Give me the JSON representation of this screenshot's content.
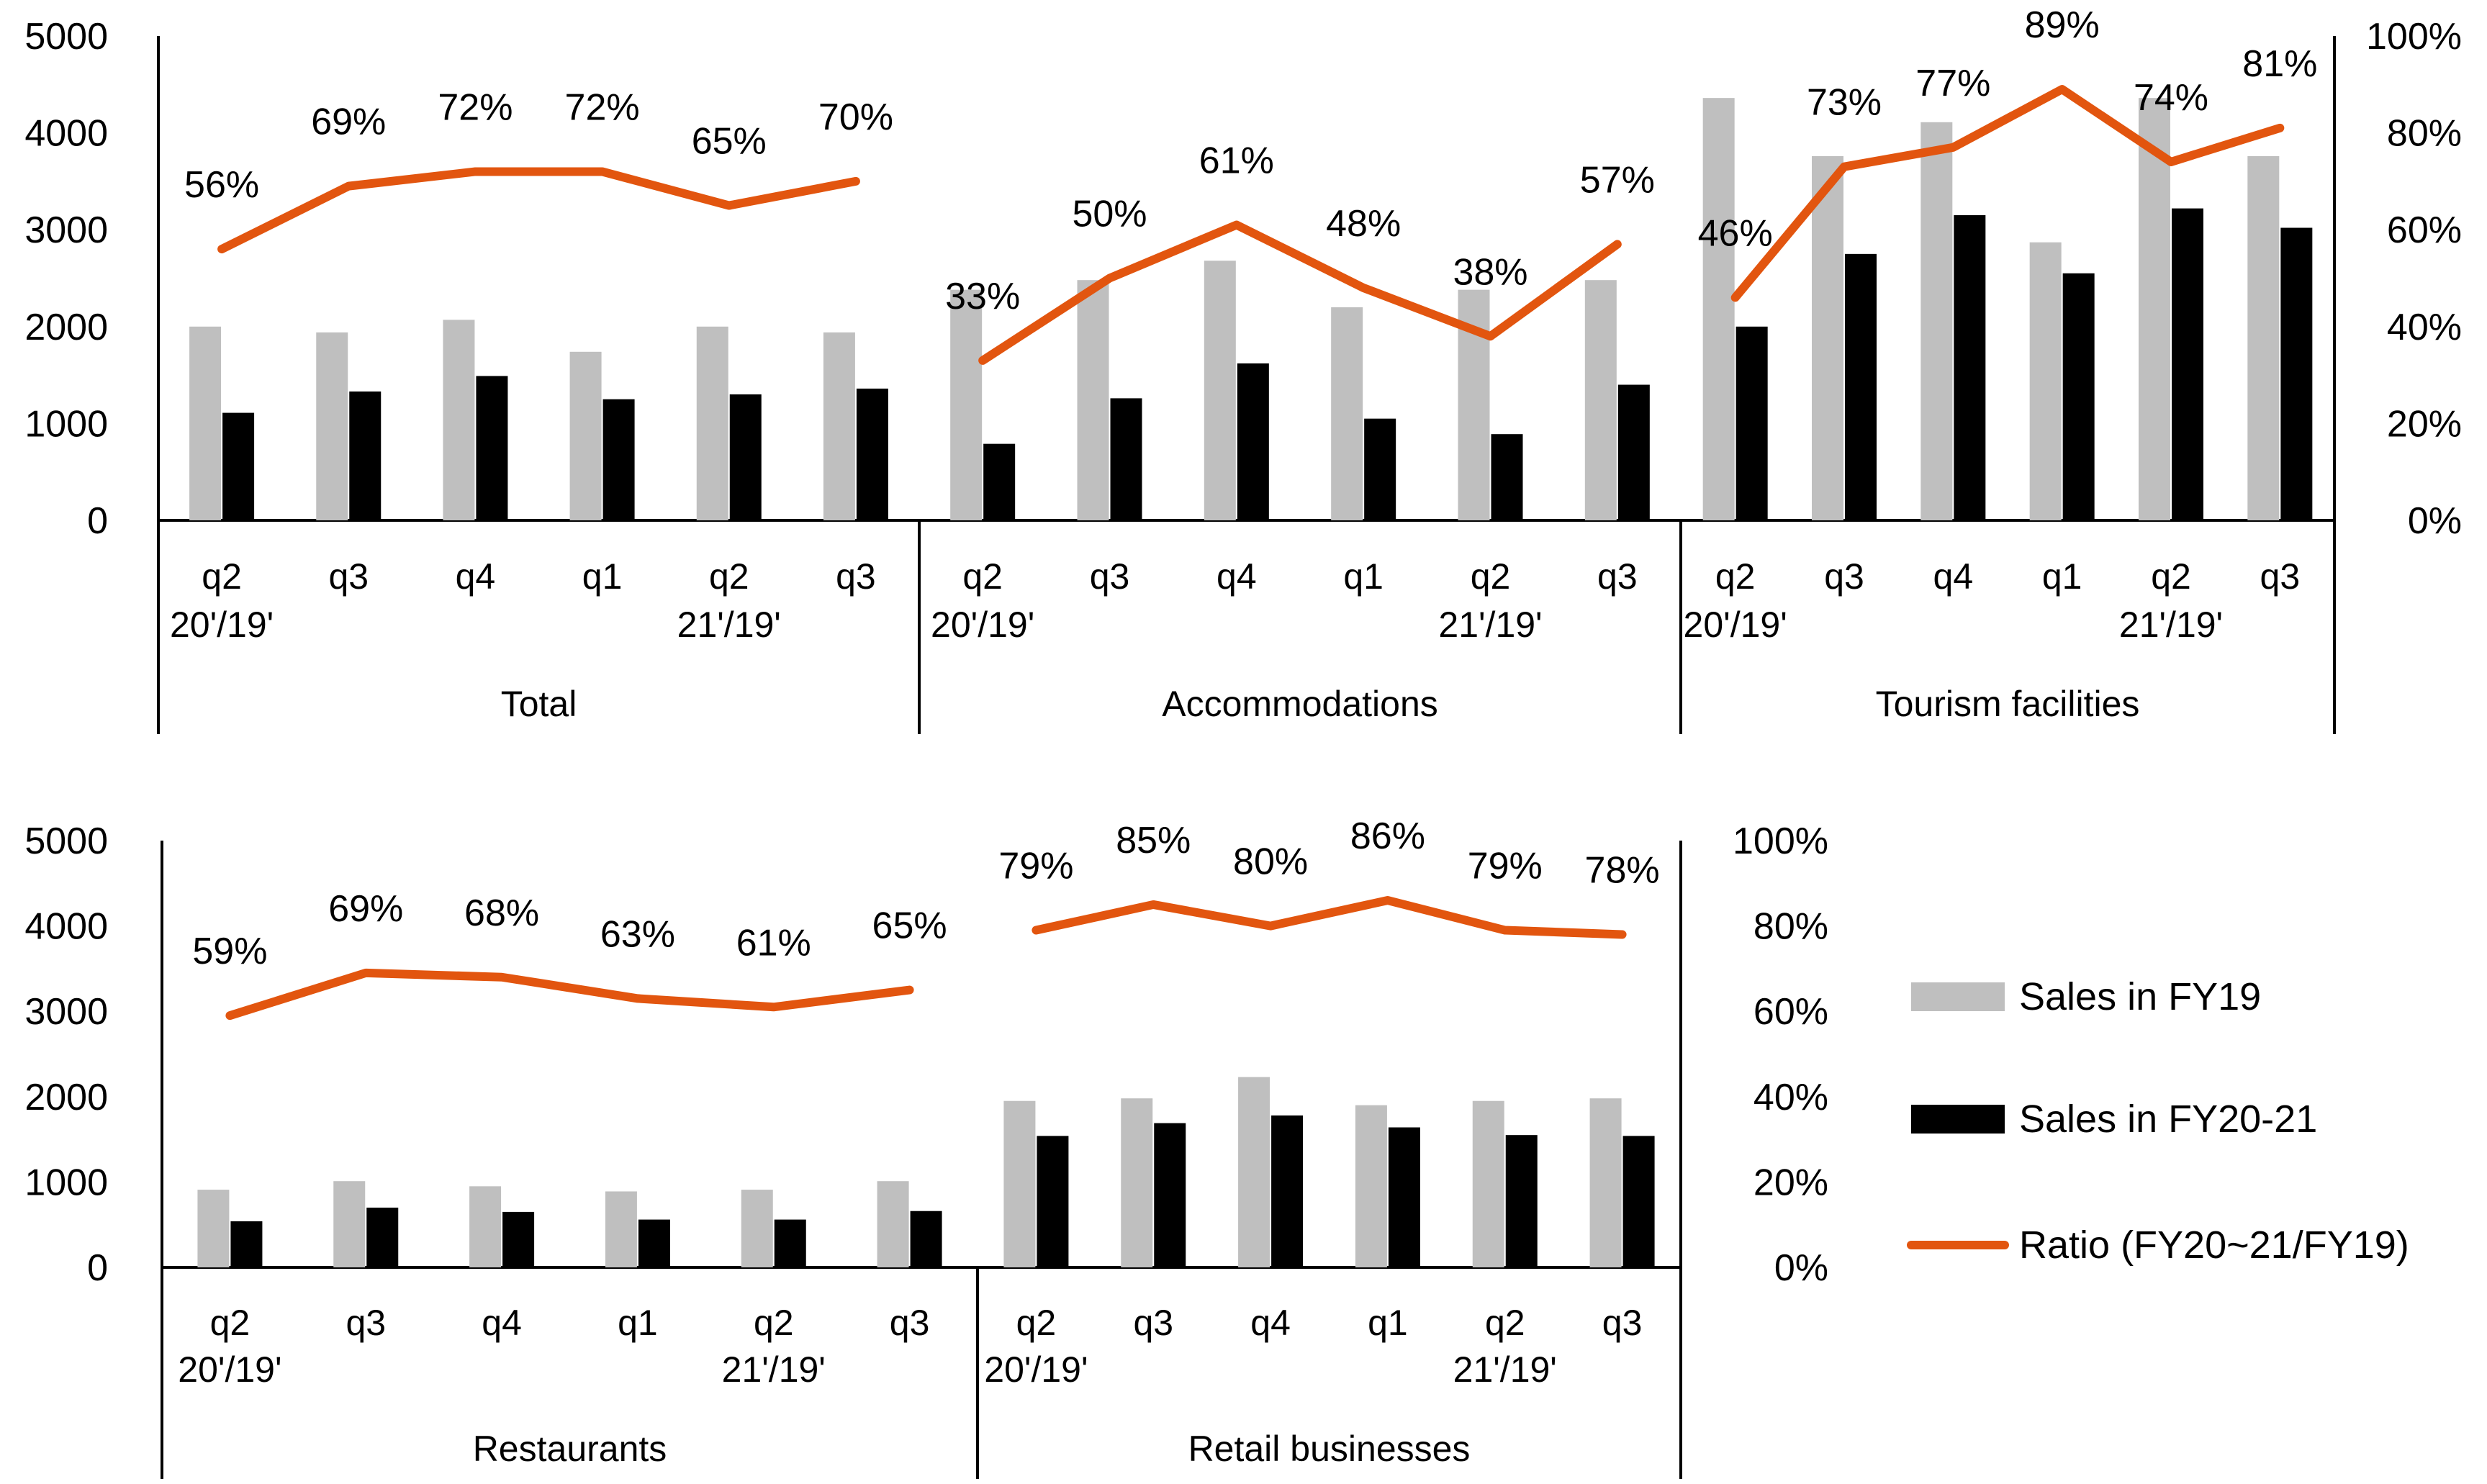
{
  "chart_data": {
    "type": "bar",
    "subtype": "grouped bar with ratio line, secondary percent axis",
    "legend": {
      "placement": "right",
      "entries": [
        {
          "key": "fy19",
          "label": "Sales in FY19",
          "color": "#bfbfbf",
          "kind": "bar"
        },
        {
          "key": "fy2021",
          "label": "Sales in FY20-21",
          "color": "#000000",
          "kind": "bar"
        },
        {
          "key": "ratio",
          "label": "Ratio (FY20~21/FY19)",
          "color": "#e2550f",
          "kind": "line"
        }
      ]
    },
    "primary_axis": {
      "ylim": [
        0,
        5000
      ],
      "ticks": [
        "5000",
        "4000",
        "3000",
        "2000",
        "1000",
        "0"
      ]
    },
    "secondary_axis": {
      "ylim": [
        0,
        100
      ],
      "ticks": [
        "100%",
        "80%",
        "60%",
        "40%",
        "20%",
        "0%"
      ]
    },
    "categories": [
      {
        "quarter": "q2",
        "period": "20'/19'"
      },
      {
        "quarter": "q3",
        "period": ""
      },
      {
        "quarter": "q4",
        "period": ""
      },
      {
        "quarter": "q1",
        "period": ""
      },
      {
        "quarter": "q2",
        "period": "21'/19'"
      },
      {
        "quarter": "q3",
        "period": ""
      }
    ],
    "panels": [
      {
        "name": "Total",
        "fy19": [
          2000,
          1940,
          2070,
          1740,
          2000,
          1940
        ],
        "fy2021": [
          1110,
          1330,
          1490,
          1250,
          1300,
          1360
        ],
        "ratio": [
          56,
          69,
          72,
          72,
          65,
          70
        ]
      },
      {
        "name": "Accommodations",
        "fy19": [
          2380,
          2480,
          2680,
          2200,
          2380,
          2480
        ],
        "fy2021": [
          790,
          1260,
          1620,
          1050,
          890,
          1400
        ],
        "ratio": [
          33,
          50,
          61,
          48,
          38,
          57
        ]
      },
      {
        "name": "Tourism facilities",
        "fy19": [
          4360,
          3760,
          4110,
          2870,
          4360,
          3760
        ],
        "fy2021": [
          2000,
          2750,
          3150,
          2550,
          3220,
          3020
        ],
        "ratio": [
          46,
          73,
          77,
          89,
          74,
          81
        ]
      },
      {
        "name": "Restaurants",
        "fy19": [
          910,
          1010,
          950,
          890,
          910,
          1010
        ],
        "fy2021": [
          540,
          700,
          650,
          560,
          560,
          660
        ],
        "ratio": [
          59,
          69,
          68,
          63,
          61,
          65
        ]
      },
      {
        "name": "Retail businesses",
        "fy19": [
          1950,
          1980,
          2230,
          1900,
          1950,
          1980
        ],
        "fy2021": [
          1540,
          1690,
          1780,
          1640,
          1550,
          1540
        ],
        "ratio": [
          79,
          85,
          80,
          86,
          79,
          78
        ]
      }
    ]
  }
}
